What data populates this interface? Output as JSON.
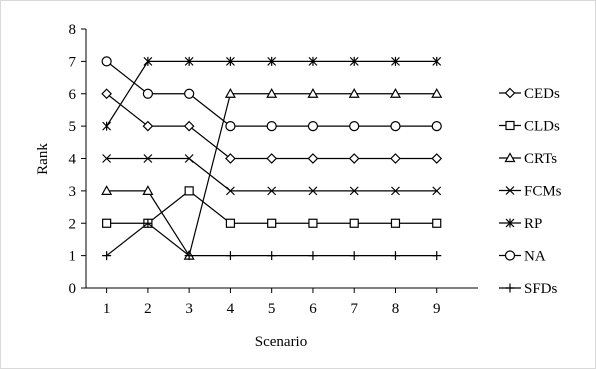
{
  "chart_data": {
    "type": "line",
    "title": "",
    "xlabel": "Scenario",
    "ylabel": "Rank",
    "x": [
      1,
      2,
      3,
      4,
      5,
      6,
      7,
      8,
      9
    ],
    "ylim": [
      0,
      8
    ],
    "yticks": [
      0,
      1,
      2,
      3,
      4,
      5,
      6,
      7,
      8
    ],
    "grid": false,
    "legend_position": "right",
    "series": [
      {
        "name": "CEDs",
        "marker": "diamond",
        "values": [
          6,
          5,
          5,
          4,
          4,
          4,
          4,
          4,
          4
        ]
      },
      {
        "name": "CLDs",
        "marker": "square",
        "values": [
          2,
          2,
          3,
          2,
          2,
          2,
          2,
          2,
          2
        ]
      },
      {
        "name": "CRTs",
        "marker": "triangle",
        "values": [
          3,
          3,
          1,
          6,
          6,
          6,
          6,
          6,
          6
        ]
      },
      {
        "name": "FCMs",
        "marker": "x",
        "values": [
          4,
          4,
          4,
          3,
          3,
          3,
          3,
          3,
          3
        ]
      },
      {
        "name": "RP",
        "marker": "star",
        "values": [
          5,
          7,
          7,
          7,
          7,
          7,
          7,
          7,
          7
        ]
      },
      {
        "name": "NA",
        "marker": "circle",
        "values": [
          7,
          6,
          6,
          5,
          5,
          5,
          5,
          5,
          5
        ]
      },
      {
        "name": "SFDs",
        "marker": "plus",
        "values": [
          1,
          2,
          1,
          1,
          1,
          1,
          1,
          1,
          1
        ]
      }
    ],
    "line_color": "#000000"
  }
}
